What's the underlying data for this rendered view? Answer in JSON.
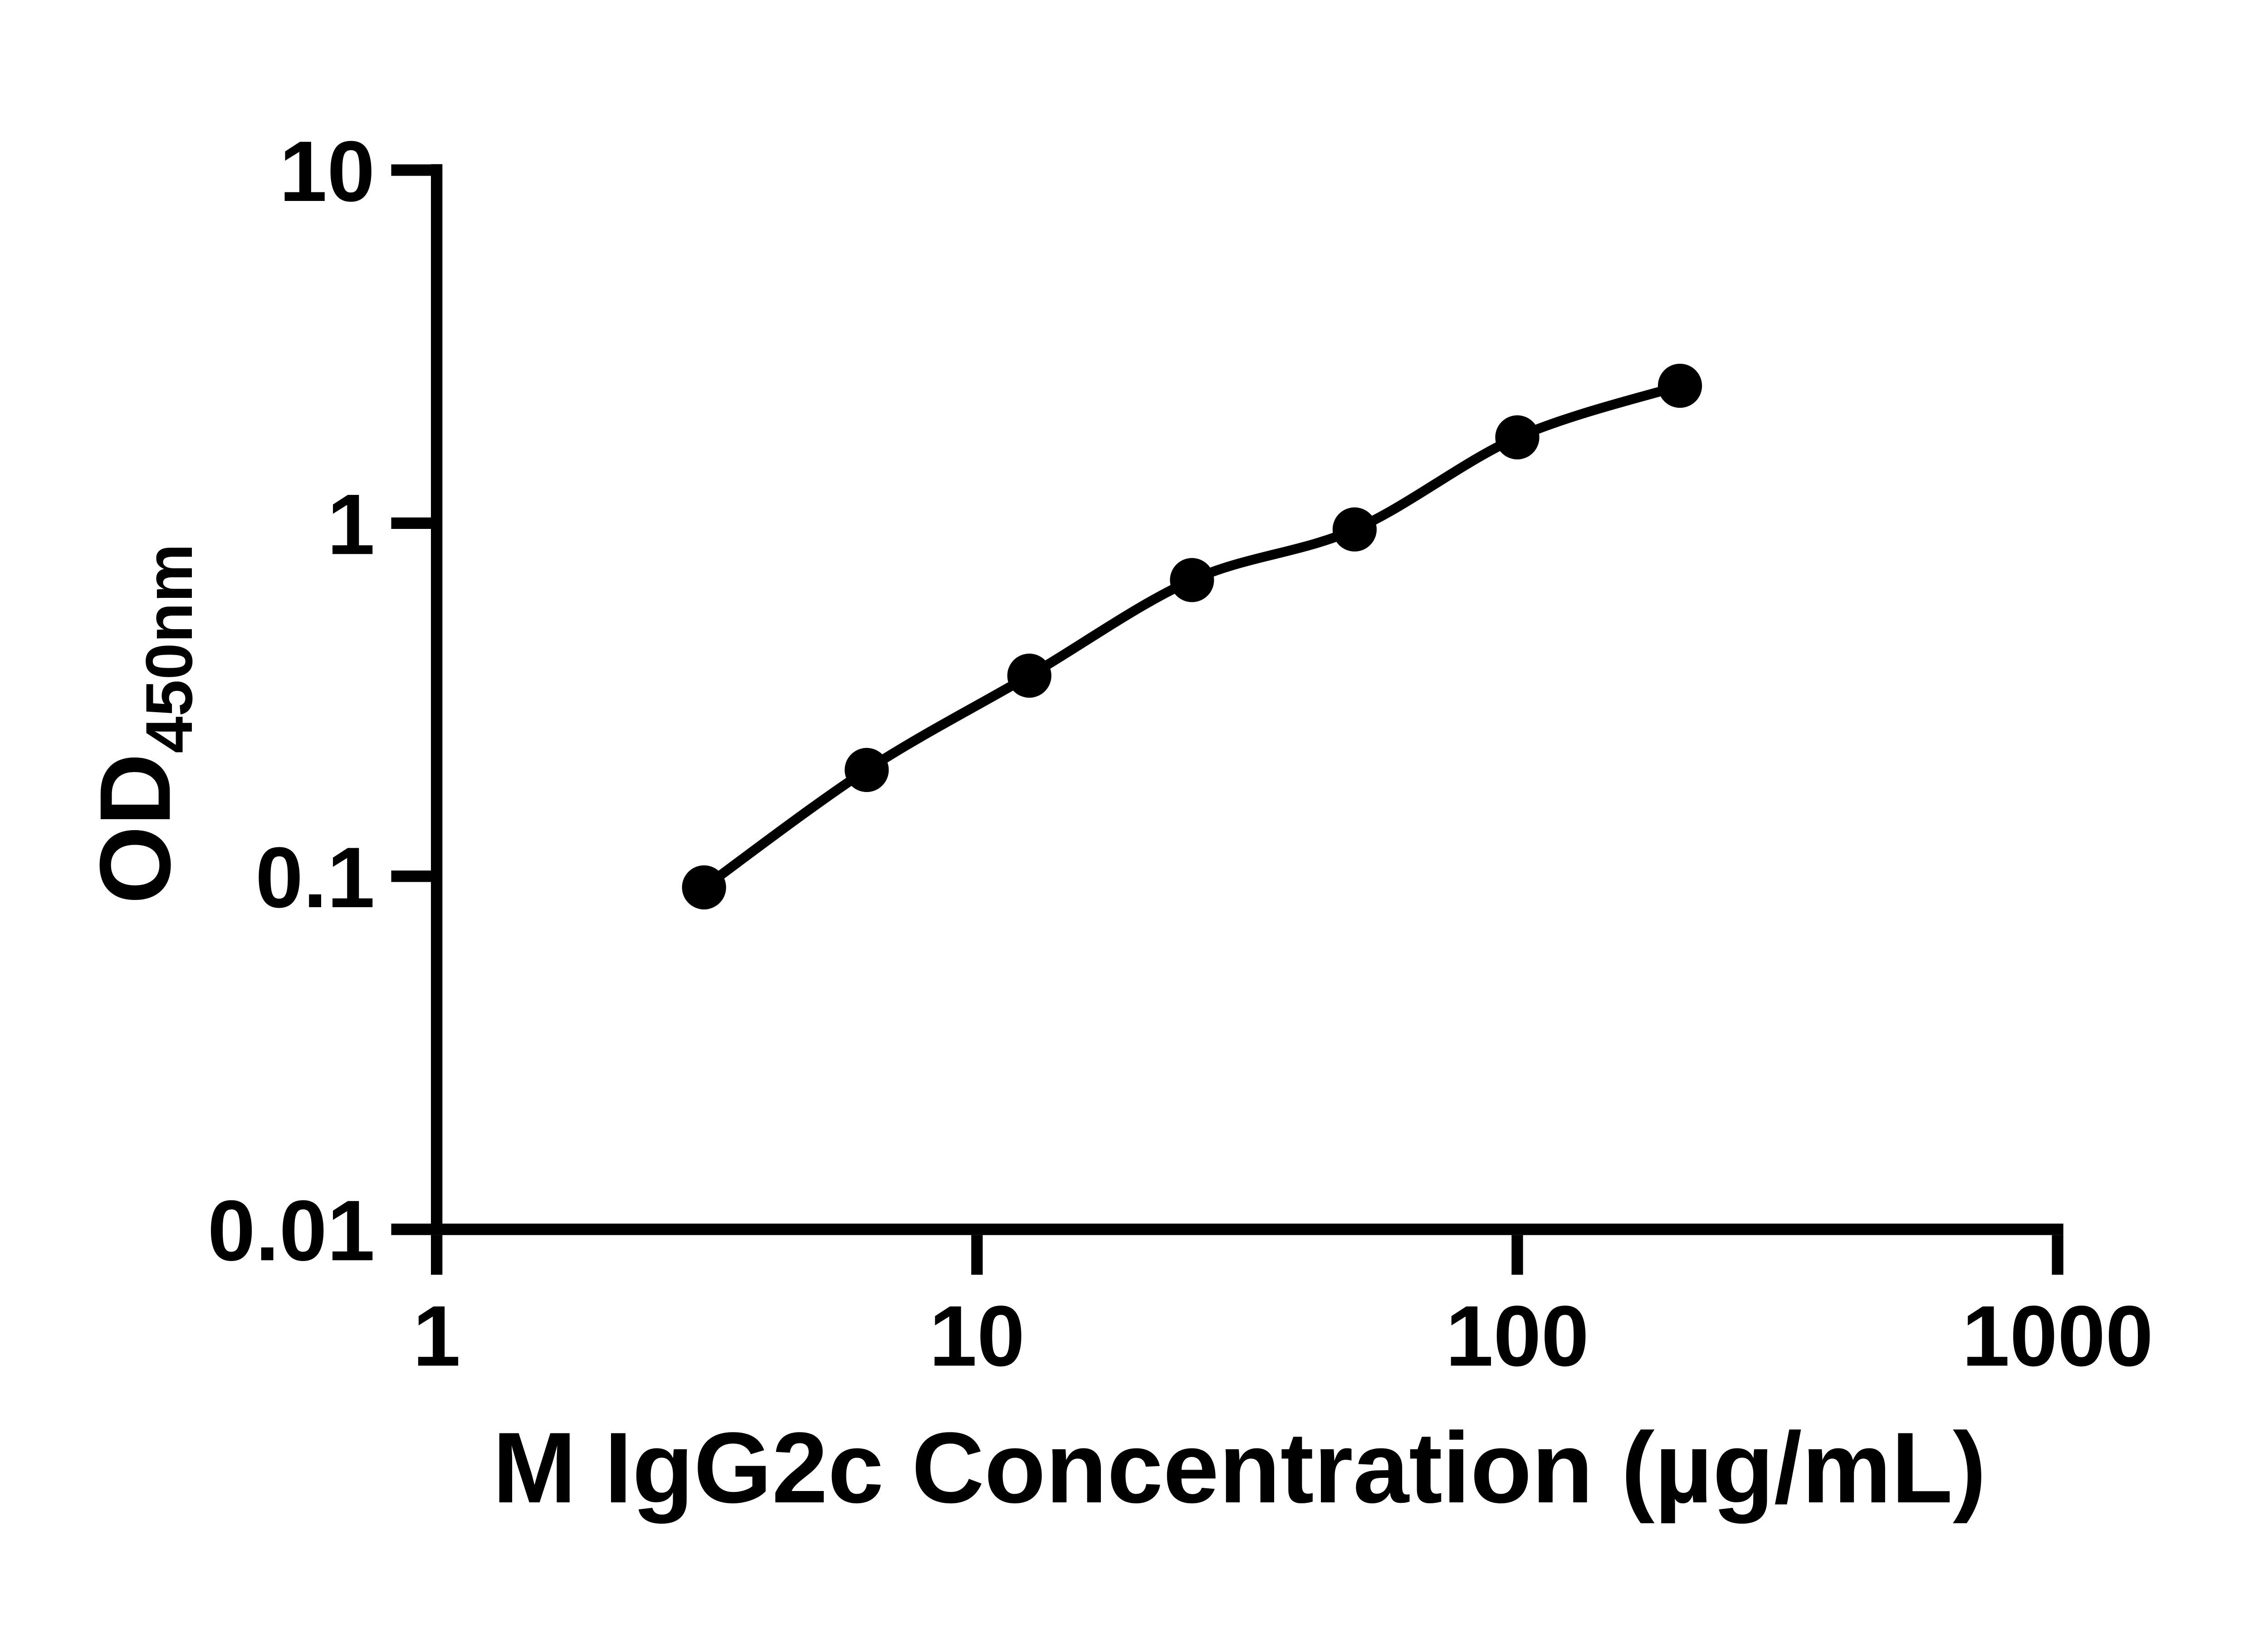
{
  "figure": {
    "background_color": "#ffffff",
    "foreground_color": "#000000"
  },
  "chart_data": {
    "type": "scatter",
    "x_scale": "log10",
    "y_scale": "log10",
    "title": "",
    "xlabel": "M IgG2c Concentration (µg/mL)",
    "ylabel": "OD",
    "ylabel_subscript": "450nm",
    "xlim": [
      1,
      1000
    ],
    "ylim": [
      0.01,
      10
    ],
    "grid": false,
    "legend_position": "none",
    "x_ticks": [
      1,
      10,
      100,
      1000
    ],
    "x_tick_labels": [
      "1",
      "10",
      "100",
      "1000"
    ],
    "y_ticks": [
      10,
      1,
      0.1,
      0.01
    ],
    "y_tick_labels": [
      "10",
      "1",
      "0.1",
      "0.01"
    ],
    "series": [
      {
        "marker": "filled-circle",
        "color": "#000000",
        "fit_line": true,
        "points": [
          {
            "x": 3.125,
            "y": 0.093
          },
          {
            "x": 6.25,
            "y": 0.2
          },
          {
            "x": 12.5,
            "y": 0.37
          },
          {
            "x": 25,
            "y": 0.69
          },
          {
            "x": 50,
            "y": 0.96
          },
          {
            "x": 100,
            "y": 1.75
          },
          {
            "x": 200,
            "y": 2.45
          }
        ]
      }
    ]
  }
}
